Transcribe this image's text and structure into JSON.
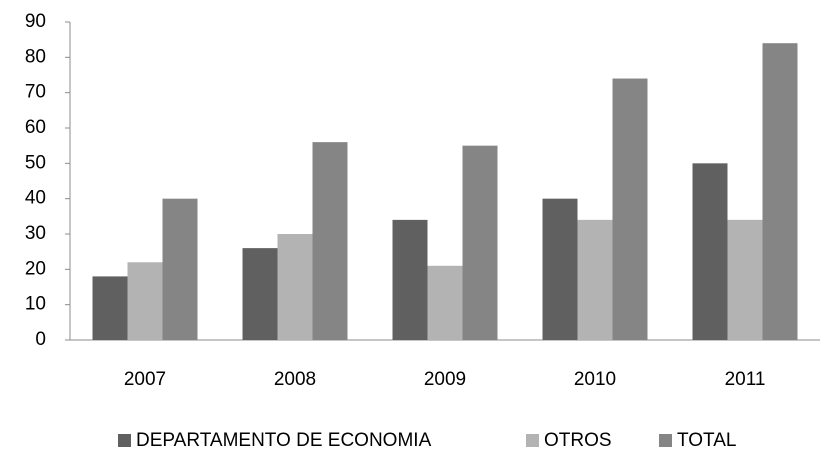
{
  "chart_data": {
    "type": "bar",
    "categories": [
      "2007",
      "2008",
      "2009",
      "2010",
      "2011"
    ],
    "series": [
      {
        "name": "DEPARTAMENTO DE ECONOMIA",
        "color": "#606060",
        "values": [
          18,
          26,
          34,
          40,
          50
        ]
      },
      {
        "name": "OTROS",
        "color": "#b3b3b3",
        "values": [
          22,
          30,
          21,
          34,
          34
        ]
      },
      {
        "name": "TOTAL",
        "color": "#858585",
        "values": [
          40,
          56,
          55,
          74,
          84
        ]
      }
    ],
    "ylim": [
      0,
      90
    ],
    "yticks": [
      0,
      10,
      20,
      30,
      40,
      50,
      60,
      70,
      80,
      90
    ],
    "grid": false,
    "legend": "bottom"
  }
}
